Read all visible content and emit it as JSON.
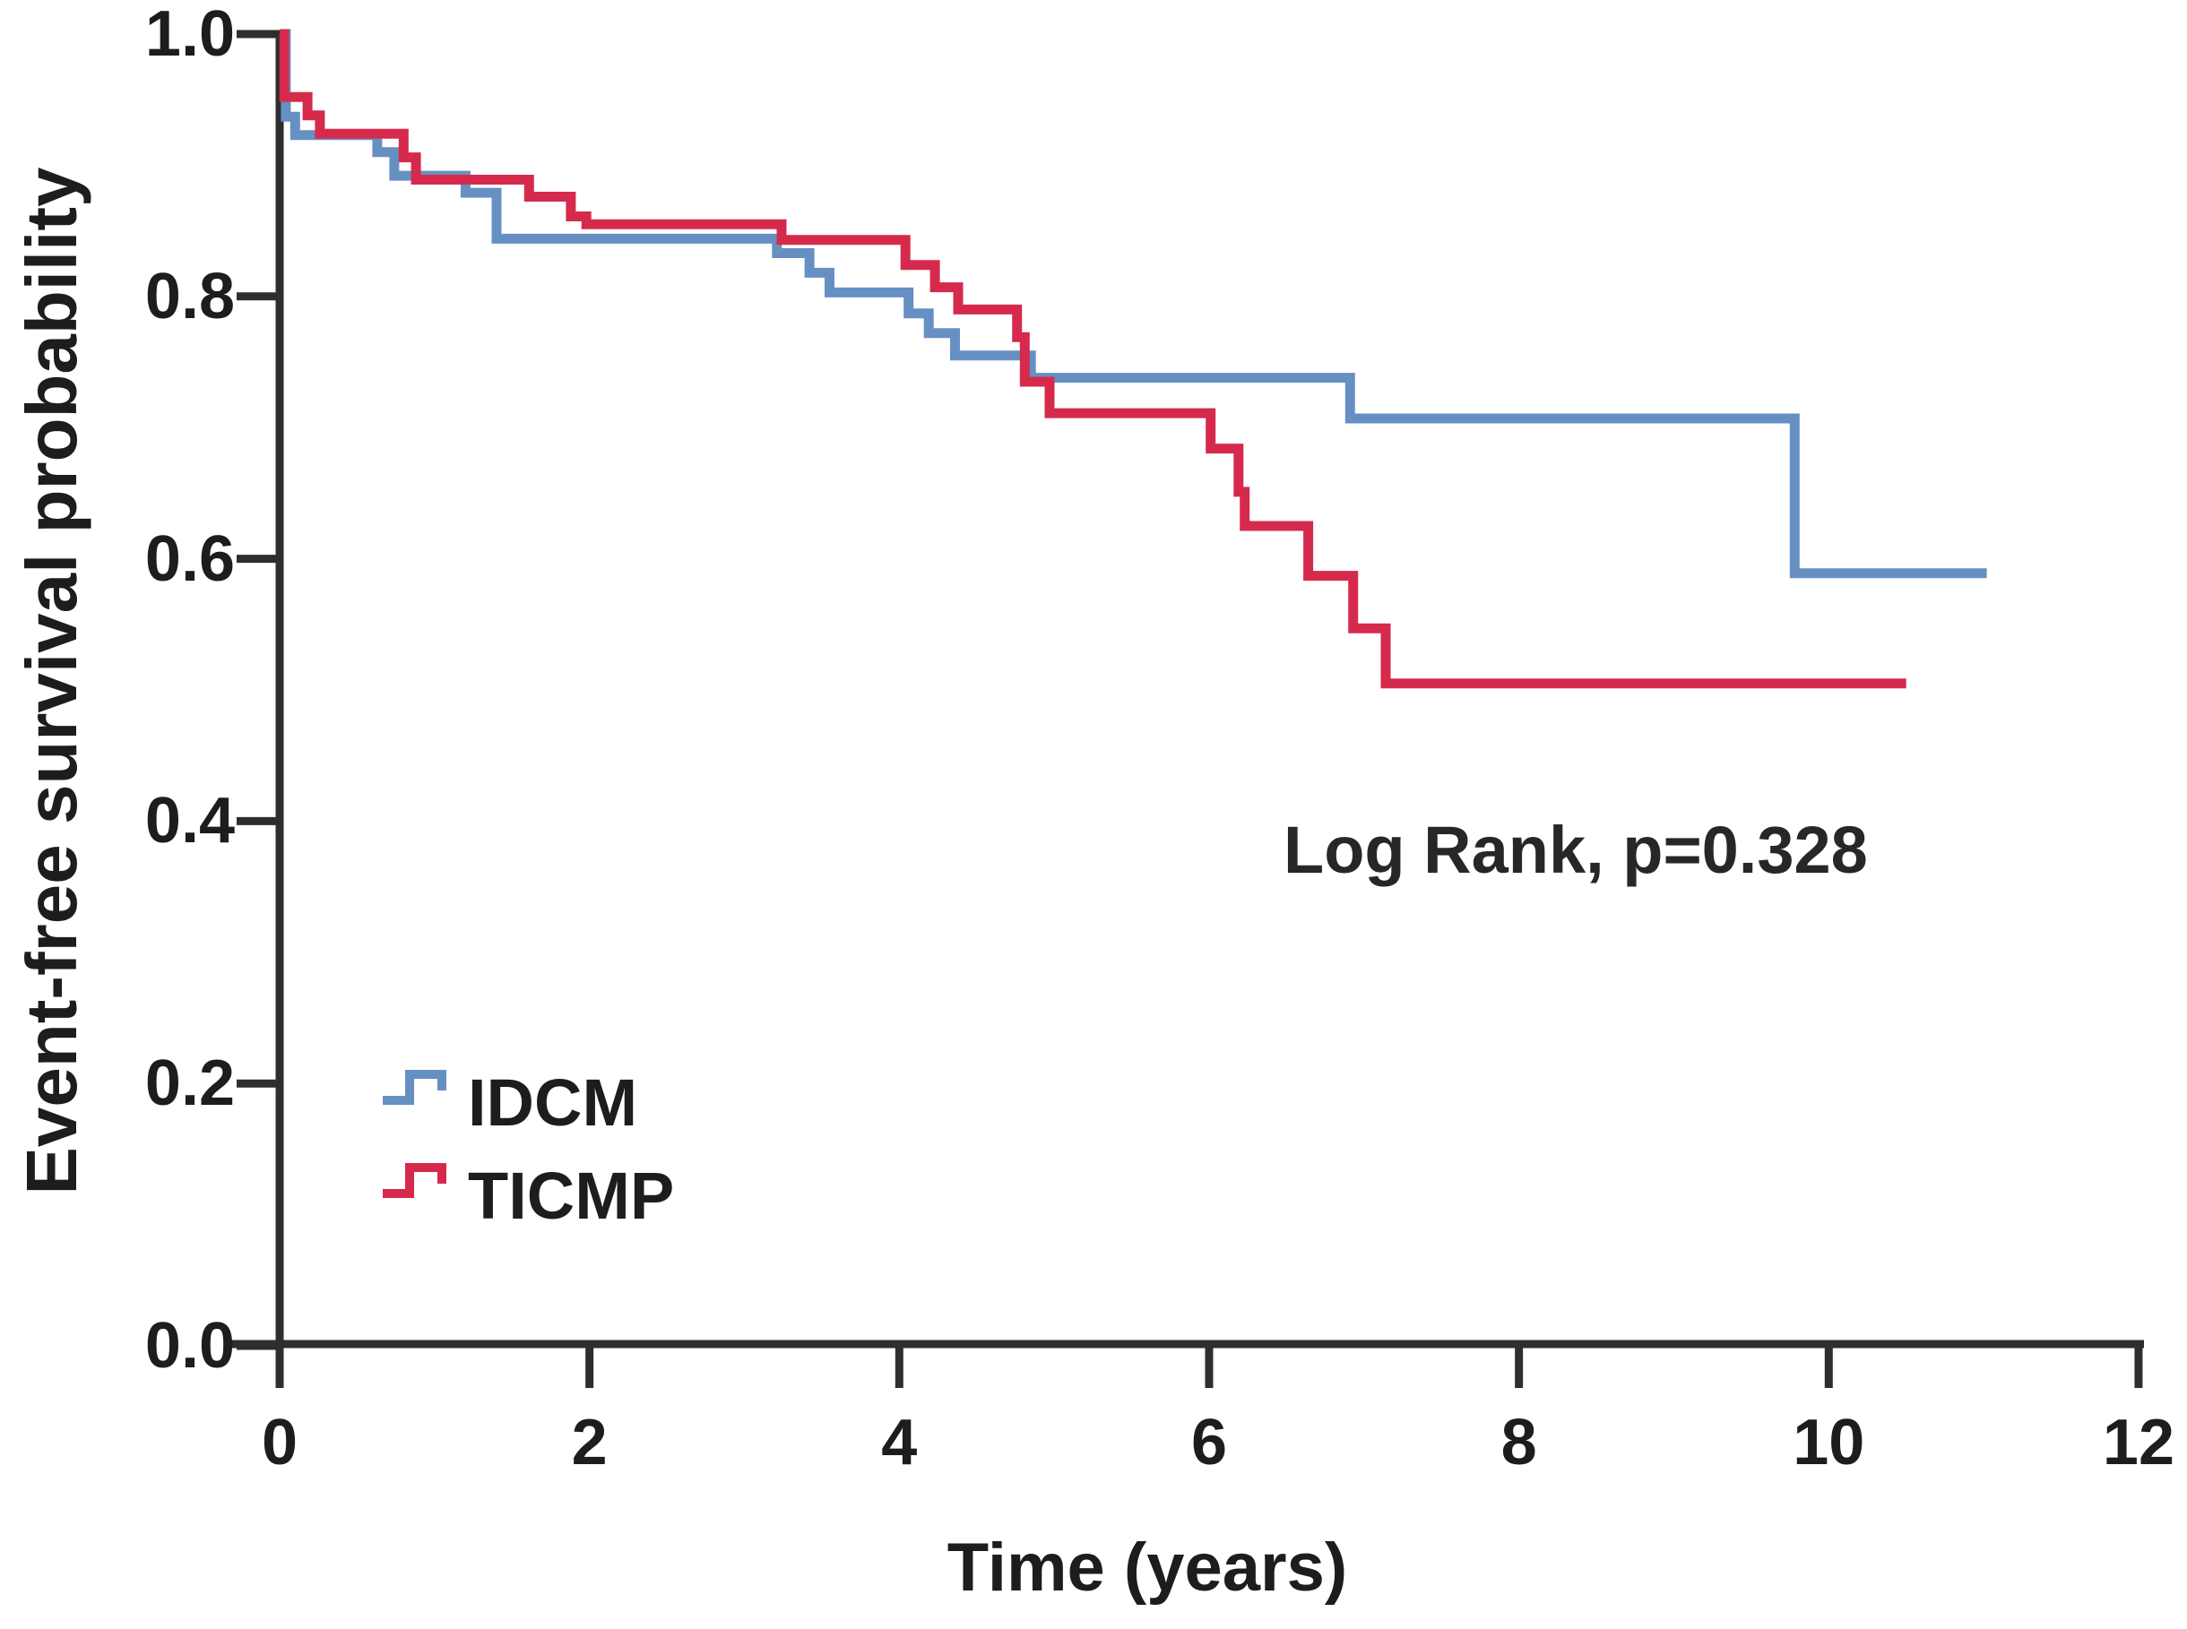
{
  "figure": {
    "title": "",
    "background_color": "#ffffff",
    "axis_color": "#2e2e2e",
    "text_color": "#1d1d1d"
  },
  "chart_data": {
    "type": "line",
    "subtype": "kaplan-meier-step",
    "title": "",
    "xlabel": "Time (years)",
    "ylabel": "Event-free survival probability",
    "annotation": "Log Rank, p=0.328",
    "xlim": [
      0,
      12
    ],
    "ylim": [
      0.0,
      1.0
    ],
    "grid": false,
    "legend_position": "lower-left",
    "xticks": [
      0,
      2,
      4,
      6,
      8,
      10,
      12
    ],
    "xtick_labels": [
      "0",
      "2",
      "4",
      "6",
      "8",
      "10",
      "12"
    ],
    "yticks": [
      1.0,
      0.8,
      0.6,
      0.4,
      0.2,
      0.0
    ],
    "ytick_labels": [
      "1.0",
      "0.8",
      "0.6",
      "0.4",
      "0.2",
      "0.0"
    ],
    "series": [
      {
        "name": "IDCM",
        "color": "#6690c2",
        "points": [
          [
            0,
            1.0
          ],
          [
            0.04,
            0.937
          ],
          [
            0.1,
            0.923
          ],
          [
            0.63,
            0.91
          ],
          [
            0.74,
            0.892
          ],
          [
            1.2,
            0.879
          ],
          [
            1.4,
            0.844
          ],
          [
            3.21,
            0.833
          ],
          [
            3.42,
            0.818
          ],
          [
            3.55,
            0.803
          ],
          [
            4.06,
            0.787
          ],
          [
            4.19,
            0.772
          ],
          [
            4.36,
            0.755
          ],
          [
            4.85,
            0.738
          ],
          [
            6.91,
            0.707
          ],
          [
            9.78,
            0.589
          ]
        ],
        "end_time": 11.02
      },
      {
        "name": "TICMP",
        "color": "#d52a4c",
        "points": [
          [
            0,
            1.0
          ],
          [
            0.03,
            0.952
          ],
          [
            0.18,
            0.938
          ],
          [
            0.26,
            0.924
          ],
          [
            0.8,
            0.906
          ],
          [
            0.88,
            0.889
          ],
          [
            1.61,
            0.876
          ],
          [
            1.88,
            0.861
          ],
          [
            1.98,
            0.855
          ],
          [
            3.24,
            0.843
          ],
          [
            4.04,
            0.824
          ],
          [
            4.23,
            0.807
          ],
          [
            4.38,
            0.79
          ],
          [
            4.76,
            0.769
          ],
          [
            4.81,
            0.735
          ],
          [
            4.97,
            0.711
          ],
          [
            6.01,
            0.684
          ],
          [
            6.19,
            0.651
          ],
          [
            6.23,
            0.625
          ],
          [
            6.64,
            0.587
          ],
          [
            6.93,
            0.547
          ],
          [
            7.14,
            0.505
          ]
        ],
        "end_time": 10.5
      }
    ]
  }
}
